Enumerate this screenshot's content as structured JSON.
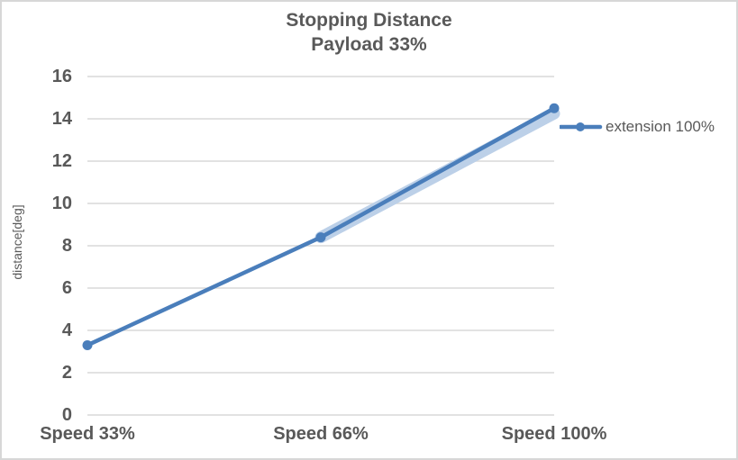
{
  "chart_data": {
    "type": "line",
    "title_lines": [
      "Stopping Distance",
      "Payload 33%"
    ],
    "categories": [
      "Speed 33%",
      "Speed 66%",
      "Speed 100%"
    ],
    "series": [
      {
        "name": "extension 100%",
        "values": [
          3.3,
          8.4,
          14.5
        ],
        "color": "#4a7ebb",
        "marker": "circle",
        "role": "main"
      },
      {
        "name": "",
        "values": [
          null,
          8.4,
          14.25
        ],
        "color": "#bcd0e8",
        "marker": "none",
        "role": "shadow"
      }
    ],
    "xlabel": "",
    "ylabel": "distance[deg]",
    "ylim": [
      0,
      16
    ],
    "ytick_step": 2,
    "yticks": [
      0,
      2,
      4,
      6,
      8,
      10,
      12,
      14,
      16
    ],
    "grid": "horizontal-only",
    "legend_position": "right",
    "legend_label": "extension 100%"
  },
  "colors": {
    "series_main": "#4a7ebb",
    "series_shadow": "#bcd0e8",
    "gridline": "#d9d9d9",
    "text": "#595959",
    "border": "#d7d7d7",
    "background": "#ffffff"
  }
}
